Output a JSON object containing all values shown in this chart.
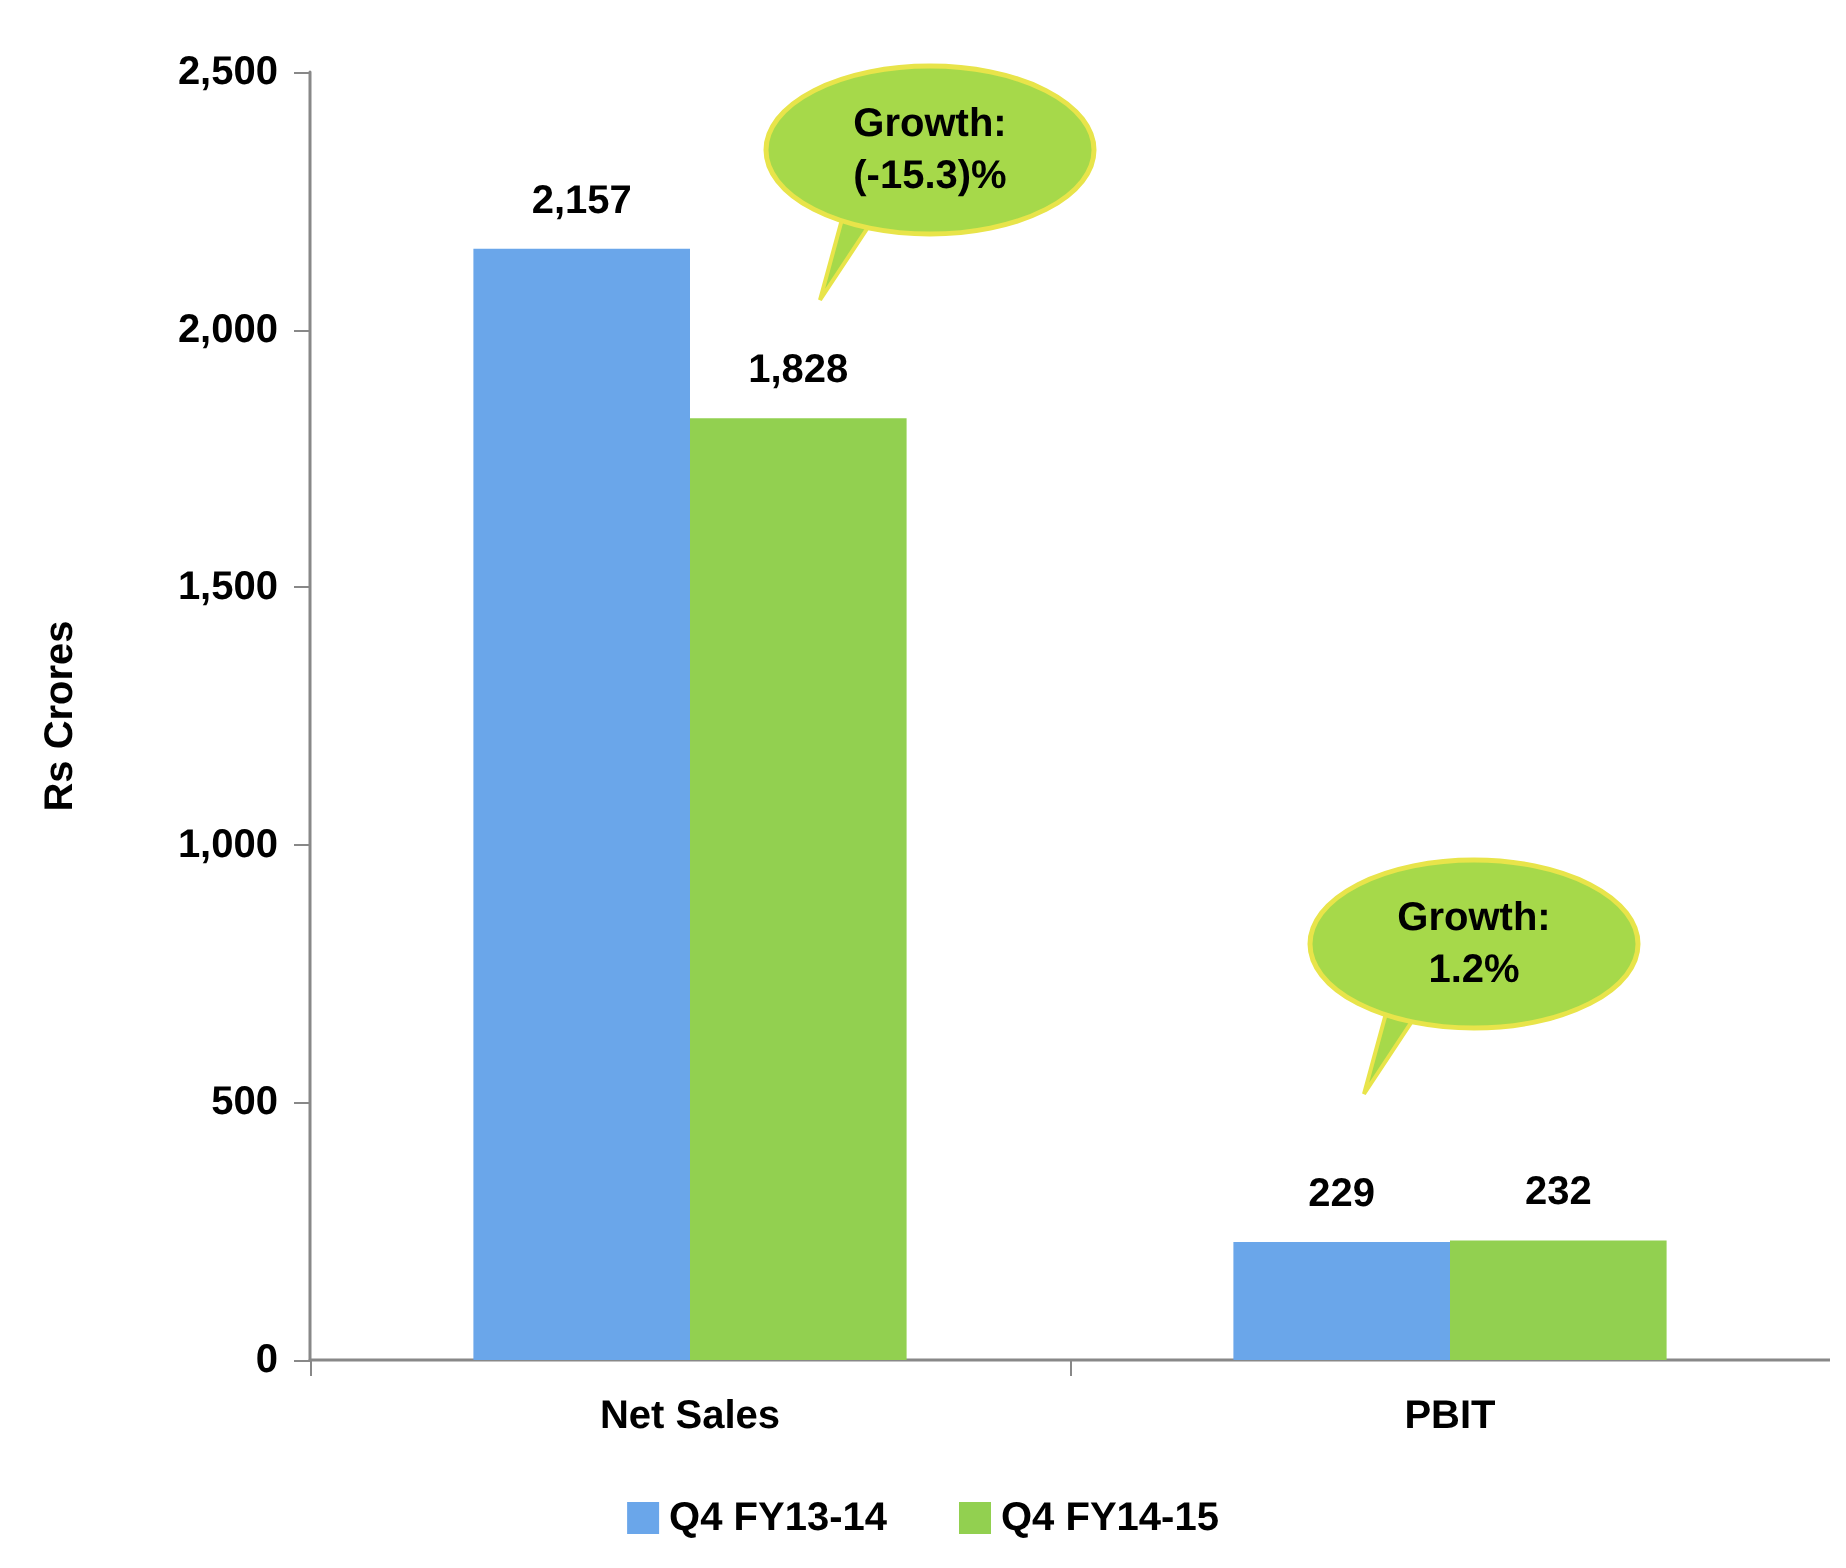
{
  "chart_data": {
    "type": "bar",
    "ylabel": "Rs Crores",
    "categories": [
      "Net Sales",
      "PBIT"
    ],
    "series": [
      {
        "name": "Q4 FY13-14",
        "color": "#6aa6ea",
        "values": [
          2157,
          229
        ],
        "value_labels": [
          "2,157",
          "229"
        ]
      },
      {
        "name": "Q4 FY14-15",
        "color": "#92d050",
        "values": [
          1828,
          232
        ],
        "value_labels": [
          "1,828",
          "232"
        ]
      }
    ],
    "ylim": [
      0,
      2500
    ],
    "yticks": [
      0,
      500,
      {
        "value": 1000,
        "label": "1,000"
      },
      {
        "value": 1500,
        "label": "1,500"
      },
      {
        "value": 2000,
        "label": "2,000"
      },
      {
        "value": 2500,
        "label": "2,500"
      }
    ],
    "grid": false,
    "legend": "bottom",
    "annotations": [
      "Growth:\n(-15.3)%",
      "Growth:\n1.2%"
    ]
  }
}
